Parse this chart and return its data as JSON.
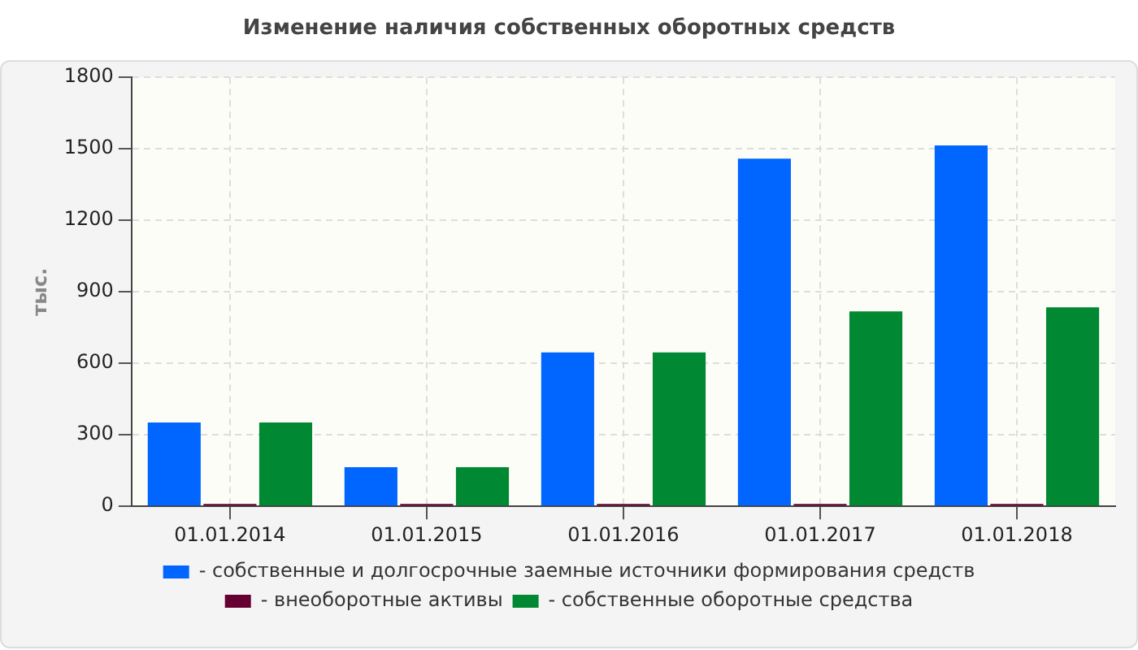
{
  "chart_data": {
    "type": "bar",
    "title": "Изменение наличия собственных оборотных средств",
    "ylabel": "тыс.",
    "categories": [
      "01.01.2014",
      "01.01.2015",
      "01.01.2016",
      "01.01.2017",
      "01.01.2018"
    ],
    "series": [
      {
        "name": "- собственные и долгосрочные заемные источники формирования средств",
        "color": "#0066ff",
        "values": [
          352,
          164,
          646,
          1459,
          1514
        ]
      },
      {
        "name": "- внеоборотные активы",
        "color": "#660033",
        "values": [
          10,
          10,
          10,
          10,
          10
        ]
      },
      {
        "name": "- собственные оборотные средства",
        "color": "#008833",
        "values": [
          352,
          164,
          646,
          818,
          835
        ]
      }
    ],
    "ylim": [
      0,
      1800
    ],
    "yticks": [
      0,
      300,
      600,
      900,
      1200,
      1500,
      1800
    ],
    "grid": true,
    "legend": "bottom"
  }
}
